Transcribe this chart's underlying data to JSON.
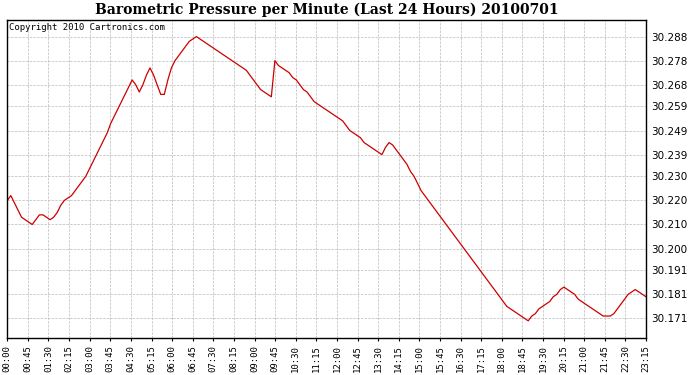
{
  "title": "Barometric Pressure per Minute (Last 24 Hours) 20100701",
  "copyright": "Copyright 2010 Cartronics.com",
  "line_color": "#cc0000",
  "bg_color": "#ffffff",
  "plot_bg_color": "#ffffff",
  "grid_color": "#bbbbbb",
  "yticks": [
    30.171,
    30.181,
    30.191,
    30.2,
    30.21,
    30.22,
    30.23,
    30.239,
    30.249,
    30.259,
    30.268,
    30.278,
    30.288
  ],
  "ylim": [
    30.163,
    30.295
  ],
  "xtick_labels": [
    "00:00",
    "00:45",
    "01:30",
    "02:15",
    "03:00",
    "03:45",
    "04:30",
    "05:15",
    "06:00",
    "06:45",
    "07:30",
    "08:15",
    "09:00",
    "09:45",
    "10:30",
    "11:15",
    "12:00",
    "12:45",
    "13:30",
    "14:15",
    "15:00",
    "15:45",
    "16:30",
    "17:15",
    "18:00",
    "18:45",
    "19:30",
    "20:15",
    "21:00",
    "21:45",
    "22:30",
    "23:15"
  ],
  "pressure_data": [
    30.22,
    30.222,
    30.219,
    30.216,
    30.213,
    30.212,
    30.211,
    30.21,
    30.212,
    30.214,
    30.214,
    30.213,
    30.212,
    30.213,
    30.215,
    30.218,
    30.22,
    30.221,
    30.222,
    30.224,
    30.226,
    30.228,
    30.23,
    30.233,
    30.236,
    30.239,
    30.242,
    30.245,
    30.248,
    30.252,
    30.255,
    30.258,
    30.261,
    30.264,
    30.267,
    30.27,
    30.268,
    30.265,
    30.268,
    30.272,
    30.275,
    30.272,
    30.268,
    30.264,
    30.264,
    30.27,
    30.275,
    30.278,
    30.28,
    30.282,
    30.284,
    30.286,
    30.287,
    30.288,
    30.287,
    30.286,
    30.285,
    30.284,
    30.283,
    30.282,
    30.281,
    30.28,
    30.279,
    30.278,
    30.277,
    30.276,
    30.275,
    30.274,
    30.272,
    30.27,
    30.268,
    30.266,
    30.265,
    30.264,
    30.263,
    30.278,
    30.276,
    30.275,
    30.274,
    30.273,
    30.271,
    30.27,
    30.268,
    30.266,
    30.265,
    30.263,
    30.261,
    30.26,
    30.259,
    30.258,
    30.257,
    30.256,
    30.255,
    30.254,
    30.253,
    30.251,
    30.249,
    30.248,
    30.247,
    30.246,
    30.244,
    30.243,
    30.242,
    30.241,
    30.24,
    30.239,
    30.242,
    30.244,
    30.243,
    30.241,
    30.239,
    30.237,
    30.235,
    30.232,
    30.23,
    30.227,
    30.224,
    30.222,
    30.22,
    30.218,
    30.216,
    30.214,
    30.212,
    30.21,
    30.208,
    30.206,
    30.204,
    30.202,
    30.2,
    30.198,
    30.196,
    30.194,
    30.192,
    30.19,
    30.188,
    30.186,
    30.184,
    30.182,
    30.18,
    30.178,
    30.176,
    30.175,
    30.174,
    30.173,
    30.172,
    30.171,
    30.17,
    30.172,
    30.173,
    30.175,
    30.176,
    30.177,
    30.178,
    30.18,
    30.181,
    30.183,
    30.184,
    30.183,
    30.182,
    30.181,
    30.179,
    30.178,
    30.177,
    30.176,
    30.175,
    30.174,
    30.173,
    30.172,
    30.172,
    30.172,
    30.173,
    30.175,
    30.177,
    30.179,
    30.181,
    30.182,
    30.183,
    30.182,
    30.181,
    30.18
  ]
}
